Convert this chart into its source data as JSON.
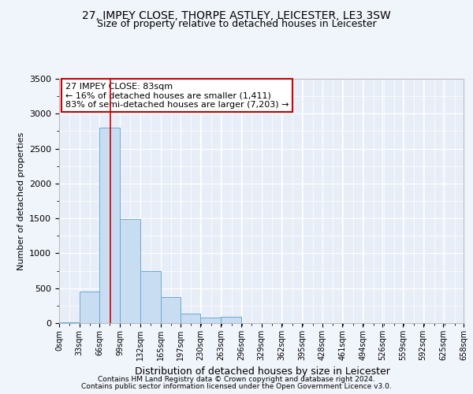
{
  "title1": "27, IMPEY CLOSE, THORPE ASTLEY, LEICESTER, LE3 3SW",
  "title2": "Size of property relative to detached houses in Leicester",
  "xlabel": "Distribution of detached houses by size in Leicester",
  "ylabel": "Number of detached properties",
  "property_size": 83,
  "bin_edges": [
    0,
    33,
    66,
    99,
    132,
    165,
    197,
    230,
    263,
    296,
    329,
    362,
    395,
    428,
    461,
    494,
    526,
    559,
    592,
    625,
    658
  ],
  "bin_labels": [
    "0sqm",
    "33sqm",
    "66sqm",
    "99sqm",
    "132sqm",
    "165sqm",
    "197sqm",
    "230sqm",
    "263sqm",
    "296sqm",
    "329sqm",
    "362sqm",
    "395sqm",
    "428sqm",
    "461sqm",
    "494sqm",
    "526sqm",
    "559sqm",
    "592sqm",
    "625sqm",
    "658sqm"
  ],
  "bar_heights": [
    10,
    450,
    2800,
    1490,
    740,
    370,
    130,
    80,
    90,
    0,
    0,
    0,
    0,
    0,
    0,
    0,
    0,
    0,
    0,
    0
  ],
  "bar_color": "#c9ddf2",
  "bar_edgecolor": "#6aaad4",
  "redline_x": 83,
  "annotation_text": "27 IMPEY CLOSE: 83sqm\n← 16% of detached houses are smaller (1,411)\n83% of semi-detached houses are larger (7,203) →",
  "annotation_box_color": "#ffffff",
  "annotation_box_edgecolor": "#cc0000",
  "ylim": [
    0,
    3500
  ],
  "yticks": [
    0,
    500,
    1000,
    1500,
    2000,
    2500,
    3000,
    3500
  ],
  "footer1": "Contains HM Land Registry data © Crown copyright and database right 2024.",
  "footer2": "Contains public sector information licensed under the Open Government Licence v3.0.",
  "bg_color": "#f0f4fb",
  "plot_bg_color": "#e8eef8"
}
